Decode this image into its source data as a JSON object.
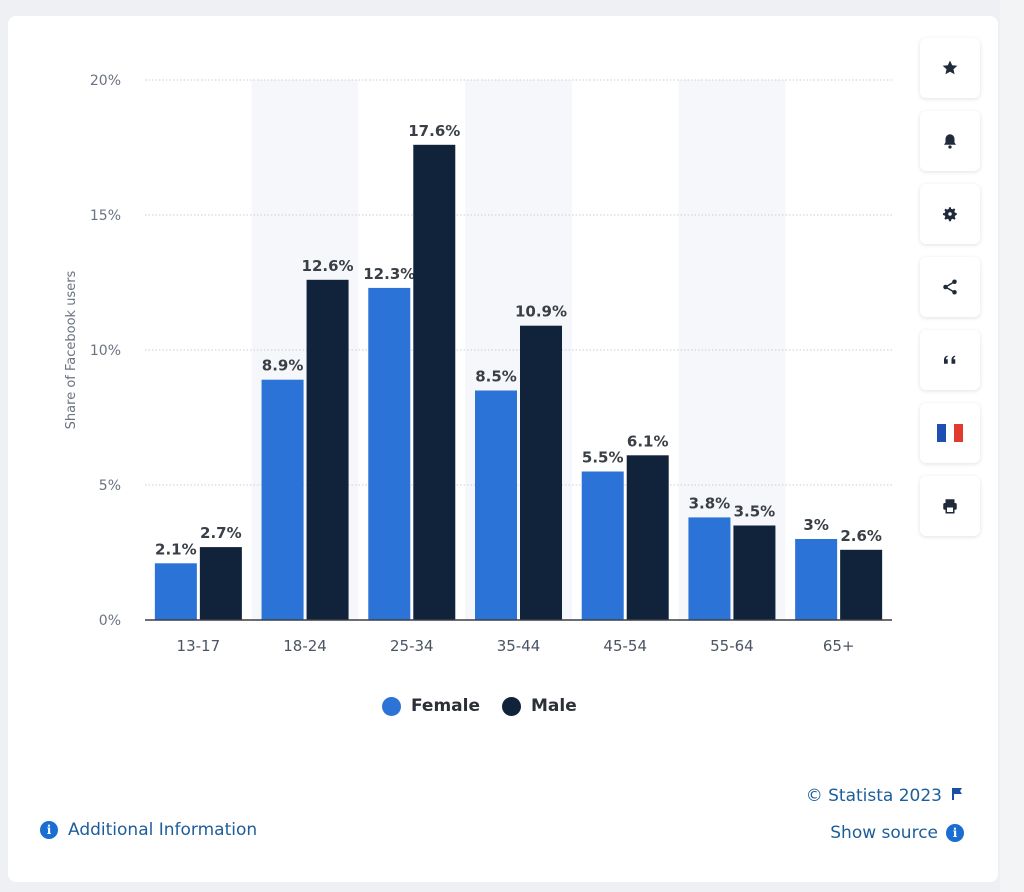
{
  "colors": {
    "female": "#2b73d6",
    "male": "#11233a",
    "link": "#1d5e9a",
    "accent": "#1a6dd1"
  },
  "toolbar": {
    "buttons": [
      {
        "icon": "star-icon"
      },
      {
        "icon": "bell-icon"
      },
      {
        "icon": "gear-icon"
      },
      {
        "icon": "share-icon"
      },
      {
        "icon": "quote-icon"
      },
      {
        "icon": "french-flag-icon"
      },
      {
        "icon": "print-icon"
      }
    ]
  },
  "footer": {
    "credit": "© Statista 2023",
    "show_source": "Show source",
    "additional_info": "Additional Information"
  },
  "chart_data": {
    "type": "bar",
    "title": "",
    "xlabel": "",
    "ylabel": "Share of Facebook users",
    "ylim": [
      0,
      20
    ],
    "yticks": [
      "0%",
      "5%",
      "10%",
      "15%",
      "20%"
    ],
    "categories": [
      "13-17",
      "18-24",
      "25-34",
      "35-44",
      "45-54",
      "55-64",
      "65+"
    ],
    "series": [
      {
        "name": "Female",
        "values": [
          2.1,
          8.9,
          12.3,
          8.5,
          5.5,
          3.8,
          3
        ],
        "labels": [
          "2.1%",
          "8.9%",
          "12.3%",
          "8.5%",
          "5.5%",
          "3.8%",
          "3%"
        ]
      },
      {
        "name": "Male",
        "values": [
          2.7,
          12.6,
          17.6,
          10.9,
          6.1,
          3.5,
          2.6
        ],
        "labels": [
          "2.7%",
          "12.6%",
          "17.6%",
          "10.9%",
          "6.1%",
          "3.5%",
          "2.6%"
        ]
      }
    ],
    "grid": true,
    "legend": "bottom"
  }
}
